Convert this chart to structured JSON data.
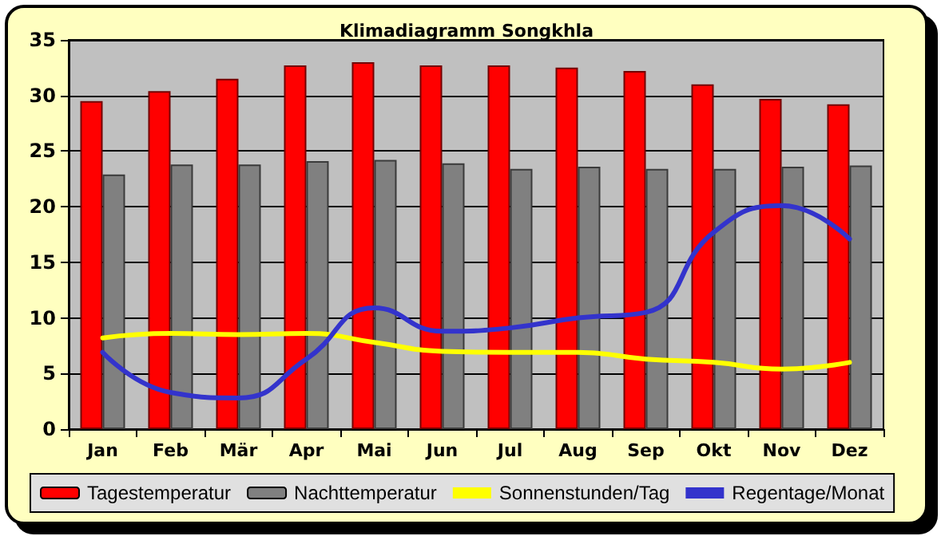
{
  "chart_data": {
    "type": "bar",
    "title": "Klimadiagramm Songkhla",
    "categories": [
      "Jan",
      "Feb",
      "Mär",
      "Apr",
      "Mai",
      "Jun",
      "Jul",
      "Aug",
      "Sep",
      "Okt",
      "Nov",
      "Dez"
    ],
    "series": [
      {
        "name": "Tagestemperatur",
        "color": "#ff0000",
        "values": [
          29.5,
          30.4,
          31.5,
          32.7,
          33.0,
          32.7,
          32.7,
          32.5,
          32.2,
          31.0,
          29.7,
          29.2
        ]
      },
      {
        "name": "Nachttemperatur",
        "color": "#808080",
        "values": [
          22.9,
          23.8,
          23.8,
          24.1,
          24.2,
          23.9,
          23.4,
          23.6,
          23.4,
          23.4,
          23.6,
          23.7
        ]
      },
      {
        "name": "Sonnenstunden/Tag",
        "type": "line",
        "color": "#ffff00",
        "values": [
          8.2,
          8.6,
          8.5,
          8.6,
          7.8,
          7.0,
          6.9,
          6.9,
          6.3,
          6.0,
          5.4,
          6.0
        ]
      },
      {
        "name": "Regentage/Monat",
        "type": "line",
        "color": "#3333cc",
        "values": [
          6.9,
          3.3,
          2.8,
          6.3,
          10.9,
          8.8,
          9.1,
          10.0,
          10.5,
          17.7,
          20.1,
          17.1
        ]
      }
    ],
    "ylim": [
      0,
      35
    ],
    "yticks": [
      0,
      5,
      10,
      15,
      20,
      25,
      30,
      35
    ],
    "grid": "y",
    "legend": "bottom",
    "marker": "none",
    "line_style": "solid"
  }
}
